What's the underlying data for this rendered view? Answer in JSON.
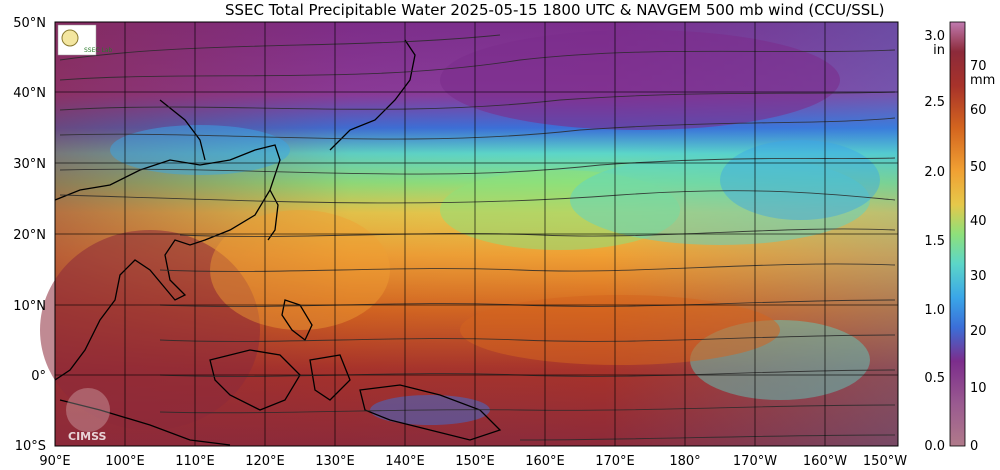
{
  "title": "SSEC Total Precipitable Water  2025-05-15 1800 UTC & NAVGEM 500 mb wind (CCU/SSL)",
  "logo_top": {
    "name": "ssec-logo",
    "text": "SSEC Lab"
  },
  "logo_bottom": {
    "name": "cimss-logo",
    "text": "CIMSS"
  },
  "lat_labels": [
    "50°N",
    "40°N",
    "30°N",
    "20°N",
    "10°N",
    "0°",
    "10°S"
  ],
  "lon_labels": [
    "90°E",
    "100°E",
    "110°E",
    "120°E",
    "130°E",
    "140°E",
    "150°E",
    "160°E",
    "170°E",
    "180°",
    "170°W",
    "160°W",
    "150°W"
  ],
  "colorbar": {
    "inch_unit": "in",
    "mm_unit": "mm",
    "inch_ticks": [
      "3.0",
      "2.5",
      "2.0",
      "1.5",
      "1.0",
      "0.5",
      "0.0"
    ],
    "mm_ticks": [
      "70",
      "60",
      "50",
      "40",
      "30",
      "20",
      "10",
      "0"
    ],
    "colors": [
      "#b07a8a",
      "#7c2d8c",
      "#3b6fd8",
      "#3aa6e8",
      "#5cd6c8",
      "#8ee07a",
      "#e6c84a",
      "#f0a033",
      "#d4651f",
      "#a7322a",
      "#8c2a3a",
      "#c07ab0"
    ]
  }
}
